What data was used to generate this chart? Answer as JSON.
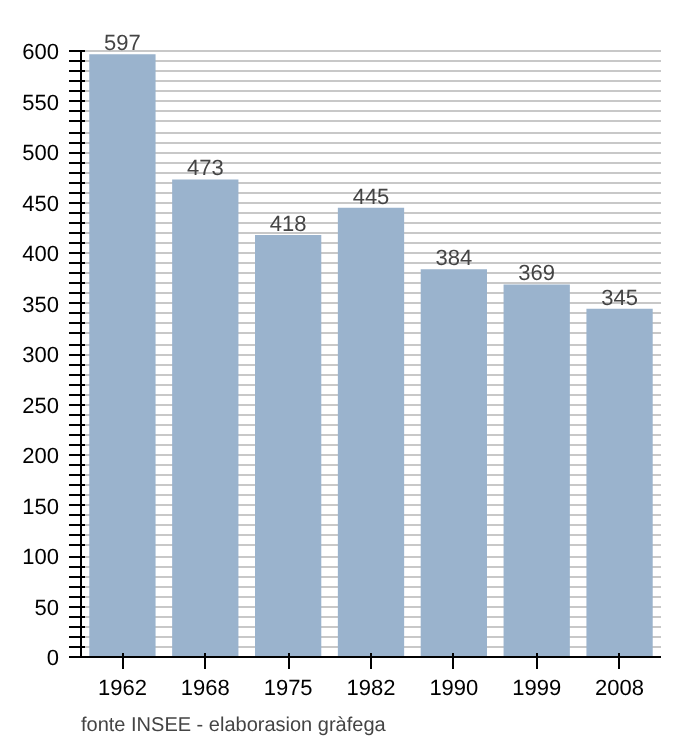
{
  "chart_data": {
    "type": "bar",
    "categories": [
      "1962",
      "1968",
      "1975",
      "1982",
      "1990",
      "1999",
      "2008"
    ],
    "values": [
      597,
      473,
      418,
      445,
      384,
      369,
      345
    ],
    "color": "#9ab3cd",
    "data_labels": true,
    "ylim": [
      0,
      600
    ],
    "yticks": [
      0,
      {
        "value": 10,
        "label": null
      },
      {
        "value": 20,
        "label": null
      },
      {
        "value": 30,
        "label": null
      },
      {
        "value": 40,
        "label": null
      },
      50,
      {
        "value": 60,
        "label": null
      },
      {
        "value": 70,
        "label": null
      },
      {
        "value": 80,
        "label": null
      },
      {
        "value": 90,
        "label": null
      },
      100,
      {
        "value": 110,
        "label": null
      },
      {
        "value": 120,
        "label": null
      },
      {
        "value": 130,
        "label": null
      },
      {
        "value": 140,
        "label": null
      },
      150,
      {
        "value": 160,
        "label": null
      },
      {
        "value": 170,
        "label": null
      },
      {
        "value": 180,
        "label": null
      },
      {
        "value": 190,
        "label": null
      },
      200,
      {
        "value": 210,
        "label": null
      },
      {
        "value": 220,
        "label": null
      },
      {
        "value": 230,
        "label": null
      },
      {
        "value": 240,
        "label": null
      },
      250,
      {
        "value": 260,
        "label": null
      },
      {
        "value": 270,
        "label": null
      },
      {
        "value": 280,
        "label": null
      },
      {
        "value": 290,
        "label": null
      },
      300,
      {
        "value": 310,
        "label": null
      },
      {
        "value": 320,
        "label": null
      },
      {
        "value": 330,
        "label": null
      },
      {
        "value": 340,
        "label": null
      },
      350,
      {
        "value": 360,
        "label": null
      },
      {
        "value": 370,
        "label": null
      },
      {
        "value": 380,
        "label": null
      },
      {
        "value": 390,
        "label": null
      },
      400,
      {
        "value": 410,
        "label": null
      },
      {
        "value": 420,
        "label": null
      },
      {
        "value": 430,
        "label": null
      },
      {
        "value": 440,
        "label": null
      },
      450,
      {
        "value": 460,
        "label": null
      },
      {
        "value": 470,
        "label": null
      },
      {
        "value": 480,
        "label": null
      },
      {
        "value": 490,
        "label": null
      },
      500,
      {
        "value": 510,
        "label": null
      },
      {
        "value": 520,
        "label": null
      },
      {
        "value": 530,
        "label": null
      },
      {
        "value": 540,
        "label": null
      },
      550,
      {
        "value": 560,
        "label": null
      },
      {
        "value": 570,
        "label": null
      },
      {
        "value": 580,
        "label": null
      },
      {
        "value": 590,
        "label": null
      },
      600
    ],
    "grid": "y",
    "annotations": [
      "fonte INSEE - elaborasion gràfega"
    ]
  }
}
